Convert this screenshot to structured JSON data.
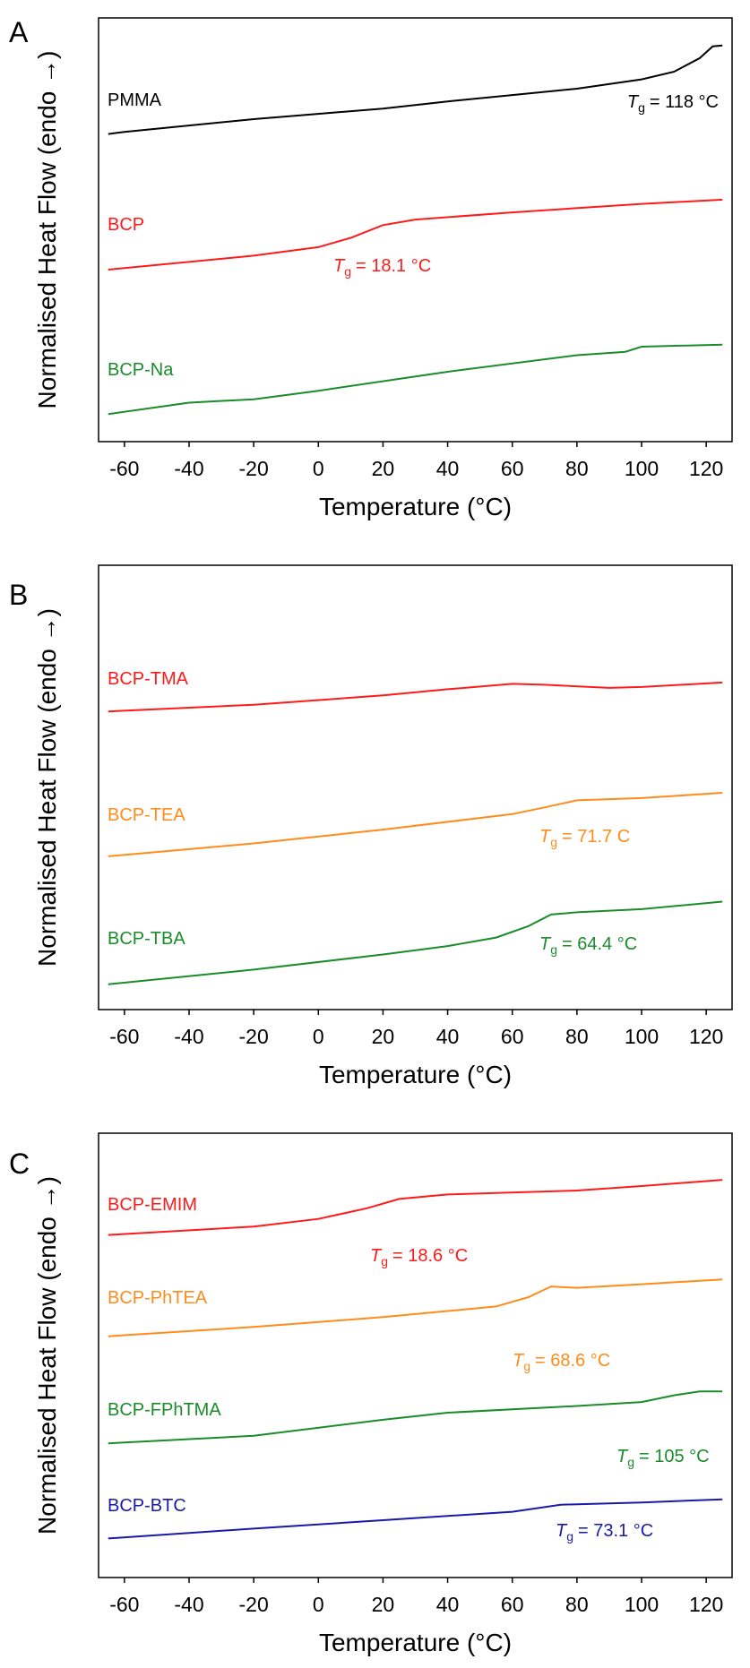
{
  "chart_data": [
    {
      "type": "line",
      "panel": "A",
      "xlabel": "Temperature (°C)",
      "ylabel": "Normalised Heat Flow (endo →)",
      "xlim": [
        -68,
        128
      ],
      "xticks": [
        -60,
        -40,
        -20,
        0,
        20,
        40,
        60,
        80,
        100,
        120
      ],
      "ylim": [
        0,
        100
      ],
      "series": [
        {
          "name": "PMMA",
          "color": "#000000",
          "x": [
            -65,
            -60,
            -20,
            20,
            40,
            60,
            80,
            100,
            110,
            118,
            122,
            125
          ],
          "values": [
            72.6,
            73.1,
            76.1,
            78.6,
            80.3,
            81.8,
            83.3,
            85.5,
            87.3,
            90.5,
            93.3,
            93.5
          ]
        },
        {
          "name": "BCP",
          "color": "#ff1a1a",
          "x": [
            -65,
            -20,
            0,
            10,
            20,
            30,
            60,
            100,
            125
          ],
          "values": [
            40.6,
            43.9,
            45.9,
            48.1,
            51.1,
            52.4,
            54.1,
            56.1,
            57.1
          ]
        },
        {
          "name": "BCP-Na",
          "color": "#1a8c2a",
          "x": [
            -65,
            -40,
            -20,
            0,
            40,
            80,
            95,
            100,
            125
          ],
          "values": [
            6.5,
            9.2,
            10,
            12,
            16.5,
            20.4,
            21.2,
            22.4,
            22.9
          ]
        }
      ],
      "annotations": [
        {
          "symbol": "T",
          "subscript": "g",
          "text": "= 118 °C",
          "color": "#000000"
        },
        {
          "symbol": "T",
          "subscript": "g",
          "text": "= 18.1 °C",
          "color": "#ff1a1a"
        }
      ]
    },
    {
      "type": "line",
      "panel": "B",
      "xlabel": "Temperature (°C)",
      "ylabel": "Normalised Heat Flow (endo →)",
      "xlim": [
        -68,
        128
      ],
      "xticks": [
        -60,
        -40,
        -20,
        0,
        20,
        40,
        60,
        80,
        100,
        120
      ],
      "ylim": [
        0,
        100
      ],
      "series": [
        {
          "name": "BCP-TMA",
          "color": "#ff1a1a",
          "x": [
            -65,
            -20,
            20,
            40,
            60,
            70,
            90,
            100,
            125
          ],
          "values": [
            67.1,
            68.6,
            70.7,
            72.1,
            73.3,
            73.1,
            72.4,
            72.6,
            73.6
          ]
        },
        {
          "name": "BCP-TEA",
          "color": "#ff8c1a",
          "x": [
            -65,
            -20,
            20,
            60,
            70,
            80,
            100,
            125
          ],
          "values": [
            34.5,
            37.4,
            40.5,
            44,
            45.5,
            47.1,
            47.6,
            48.8
          ]
        },
        {
          "name": "BCP-TBA",
          "color": "#1a8c2a",
          "x": [
            -65,
            -20,
            20,
            40,
            55,
            65,
            72,
            80,
            100,
            125
          ],
          "values": [
            5.7,
            9,
            12.4,
            14.3,
            16.2,
            18.8,
            21.4,
            21.9,
            22.6,
            24.3
          ]
        }
      ],
      "annotations": [
        {
          "symbol": "T",
          "subscript": "g",
          "text": "= 71.7 C",
          "color": "#ff8c1a"
        },
        {
          "symbol": "T",
          "subscript": "g",
          "text": "= 64.4 °C",
          "color": "#1a8c2a"
        }
      ]
    },
    {
      "type": "line",
      "panel": "C",
      "xlabel": "Temperature (°C)",
      "ylabel": "Normalised Heat Flow (endo →)",
      "xlim": [
        -68,
        128
      ],
      "xticks": [
        -60,
        -40,
        -20,
        0,
        20,
        40,
        60,
        80,
        100,
        120
      ],
      "ylim": [
        0,
        100
      ],
      "series": [
        {
          "name": "BCP-EMIM",
          "color": "#ff1a1a",
          "x": [
            -65,
            -20,
            0,
            15,
            25,
            40,
            80,
            100,
            125
          ],
          "values": [
            77.1,
            79,
            80.7,
            83.1,
            85.2,
            86.2,
            87.1,
            88.1,
            89.5
          ]
        },
        {
          "name": "BCP-PhTEA",
          "color": "#ff8c1a",
          "x": [
            -65,
            -20,
            20,
            55,
            65,
            72,
            80,
            100,
            125
          ],
          "values": [
            54.3,
            56.4,
            58.6,
            61,
            63.1,
            65.5,
            65.2,
            66,
            67.1
          ]
        },
        {
          "name": "BCP-FPhTMA",
          "color": "#1a8c2a",
          "x": [
            -65,
            -20,
            20,
            40,
            80,
            100,
            110,
            118,
            125
          ],
          "values": [
            30.2,
            31.9,
            35.5,
            37.1,
            38.6,
            39.5,
            41,
            41.9,
            41.9
          ]
        },
        {
          "name": "BCP-BTC",
          "color": "#1a1aa8",
          "x": [
            -65,
            -20,
            20,
            60,
            75,
            100,
            125
          ],
          "values": [
            8.8,
            11,
            12.9,
            14.8,
            16.4,
            16.9,
            17.6
          ]
        }
      ],
      "annotations": [
        {
          "symbol": "T",
          "subscript": "g",
          "text": "= 18.6 °C",
          "color": "#ff1a1a"
        },
        {
          "symbol": "T",
          "subscript": "g",
          "text": "= 68.6 °C",
          "color": "#ff8c1a"
        },
        {
          "symbol": "T",
          "subscript": "g",
          "text": "= 105 °C",
          "color": "#1a8c2a"
        },
        {
          "symbol": "T",
          "subscript": "g",
          "text": "= 73.1 °C",
          "color": "#1a1aa8"
        }
      ]
    }
  ]
}
